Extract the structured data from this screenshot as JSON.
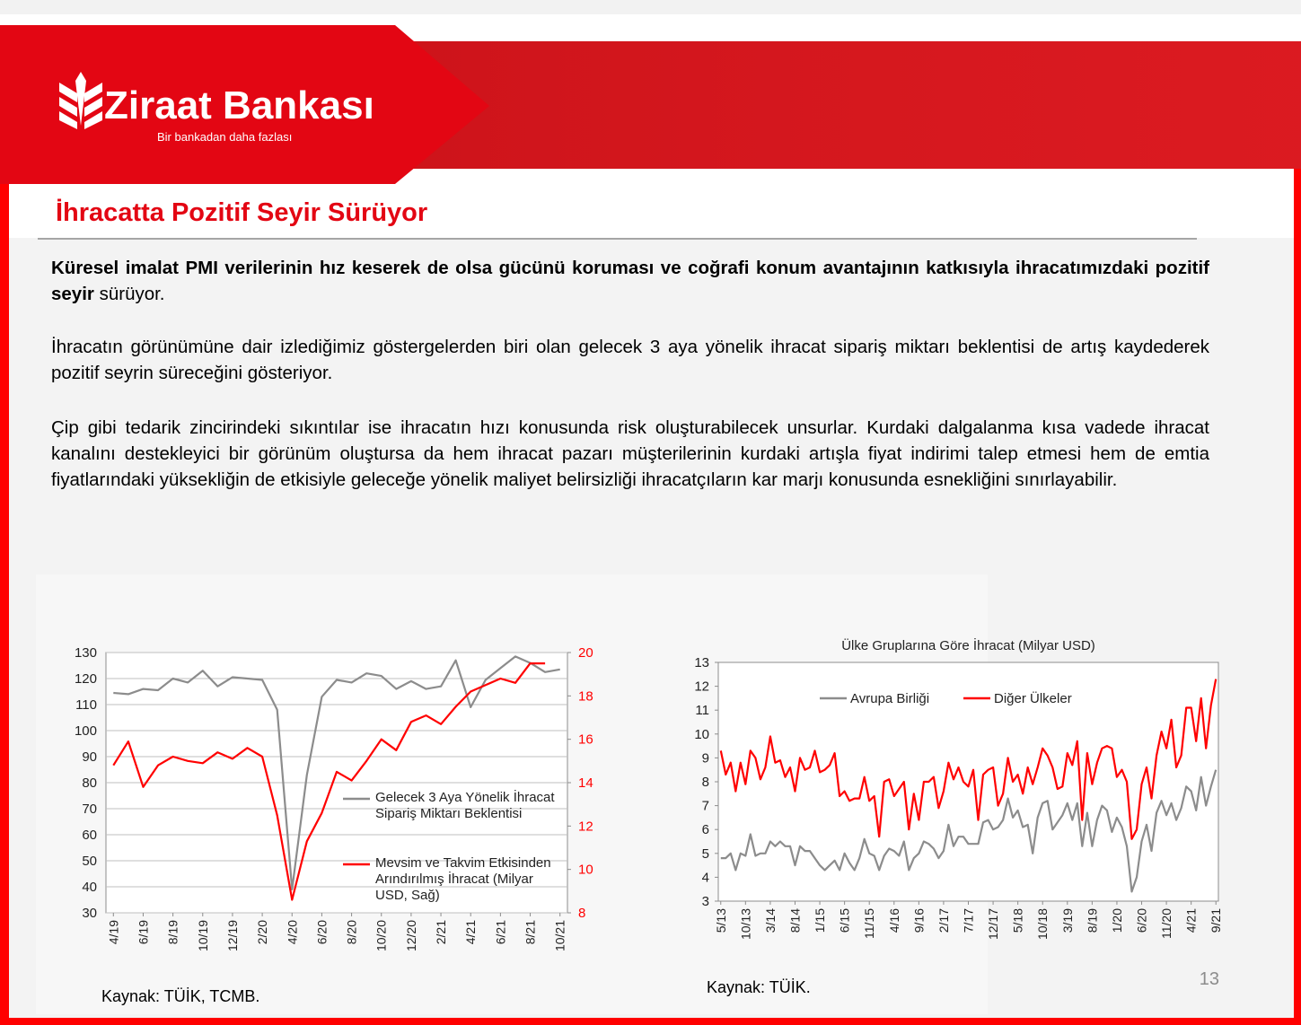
{
  "header": {
    "logo": "Ziraat Bankası",
    "tagline": "Bir bankadan daha fazlası",
    "title": "İhracatta Pozitif Seyir Sürüyor"
  },
  "paragraphs": [
    {
      "bold": "Küresel imalat PMI verilerinin hız keserek de olsa gücünü koruması ve coğrafi konum avantajının katkısıyla ihracatımızdaki pozitif seyir",
      "text": " sürüyor."
    },
    {
      "text": "İhracatın görünümüne dair izlediğimiz göstergelerden biri olan gelecek 3 aya yönelik ihracat sipariş miktarı beklentisi de artış kaydederek pozitif seyrin süreceğini gösteriyor."
    },
    {
      "text": "Çip gibi tedarik zincirindeki sıkıntılar ise ihracatın hızı konusunda risk oluşturabilecek unsurlar. Kurdaki dalgalanma kısa vadede ihracat kanalını destekleyici bir görünüm oluştursa da hem ihracat pazarı müşterilerinin kurdaki artışla fiyat indirimi talep etmesi hem de emtia fiyatlarındaki yüksekliğin de etkisiyle geleceğe yönelik maliyet belirsizliği ihracatçıların kar marjı konusunda esnekliğini sınırlayabilir."
    }
  ],
  "chart_data": [
    {
      "type": "line",
      "source": "Kaynak: TÜİK, TCMB.",
      "categories": [
        "4/19",
        null,
        "6/19",
        null,
        "8/19",
        null,
        "10/19",
        null,
        "12/19",
        null,
        "2/20",
        null,
        "4/20",
        null,
        "6/20",
        null,
        "8/20",
        null,
        "10/20",
        null,
        "12/20",
        null,
        "2/21",
        null,
        "4/21",
        null,
        "6/21",
        null,
        "8/21",
        null,
        "10/21"
      ],
      "series": [
        {
          "name": "Gelecek 3 Aya Yönelik İhracat Sipariş Miktarı Beklentisi",
          "color": "#8c8c8c",
          "axis": "y",
          "values": [
            114.5,
            114,
            116,
            115.5,
            120,
            118.5,
            123,
            117,
            120.5,
            120,
            119.5,
            108,
            39,
            83,
            113,
            119.5,
            118.5,
            122,
            121,
            116,
            119,
            116,
            117,
            127,
            109,
            119.5,
            124,
            128.5,
            126,
            122.5,
            123.5
          ]
        },
        {
          "name": "Mevsim ve Takvim Etkisinden Arındırılmış İhracat (Milyar USD, Sağ)",
          "color": "#ff0000",
          "axis": "y2",
          "values": [
            14.8,
            15.9,
            13.8,
            14.8,
            15.2,
            15.0,
            14.9,
            15.4,
            15.1,
            15.6,
            15.2,
            12.5,
            8.6,
            11.3,
            12.6,
            14.5,
            14.1,
            15.0,
            16.0,
            15.5,
            16.8,
            17.1,
            16.7,
            17.5,
            18.2,
            18.5,
            18.8,
            18.6,
            19.5,
            19.5,
            null
          ]
        }
      ],
      "ylim": [
        30,
        130
      ],
      "yticks": [
        30,
        40,
        50,
        60,
        70,
        80,
        90,
        100,
        110,
        120,
        130
      ],
      "y2lim": [
        8,
        20
      ],
      "y2ticks": [
        8,
        10,
        12,
        14,
        16,
        18,
        20
      ],
      "y2tick_color": "#ff0000",
      "grid": true
    },
    {
      "type": "line",
      "title": "Ülke Gruplarına Göre İhracat (Milyar USD)",
      "source": "Kaynak: TÜİK.",
      "categories": [
        "5/13",
        null,
        null,
        null,
        null,
        "10/13",
        null,
        null,
        null,
        null,
        "3/14",
        null,
        null,
        null,
        null,
        "8/14",
        null,
        null,
        null,
        null,
        "1/15",
        null,
        null,
        null,
        null,
        "6/15",
        null,
        null,
        null,
        null,
        "11/15",
        null,
        null,
        null,
        null,
        "4/16",
        null,
        null,
        null,
        null,
        "9/16",
        null,
        null,
        null,
        null,
        "2/17",
        null,
        null,
        null,
        null,
        "7/17",
        null,
        null,
        null,
        null,
        "12/17",
        null,
        null,
        null,
        null,
        "5/18",
        null,
        null,
        null,
        null,
        "10/18",
        null,
        null,
        null,
        null,
        "3/19",
        null,
        null,
        null,
        null,
        "8/19",
        null,
        null,
        null,
        null,
        "1/20",
        null,
        null,
        null,
        null,
        "6/20",
        null,
        null,
        null,
        null,
        "11/20",
        null,
        null,
        null,
        null,
        "4/21",
        null,
        null,
        null,
        null,
        "9/21"
      ],
      "series": [
        {
          "name": "Avrupa Birliği",
          "color": "#8c8c8c",
          "axis": "y",
          "values": [
            4.8,
            4.8,
            5.0,
            4.3,
            5.0,
            4.9,
            5.8,
            4.9,
            5.0,
            5.0,
            5.5,
            5.3,
            5.5,
            5.3,
            5.3,
            4.5,
            5.3,
            5.1,
            5.1,
            4.8,
            4.5,
            4.3,
            4.5,
            4.7,
            4.3,
            5.0,
            4.6,
            4.3,
            4.8,
            5.6,
            5.0,
            4.9,
            4.3,
            4.9,
            5.2,
            5.1,
            4.9,
            5.5,
            4.3,
            4.8,
            5.0,
            5.5,
            5.4,
            5.2,
            4.8,
            5.1,
            6.2,
            5.3,
            5.7,
            5.7,
            5.4,
            5.4,
            5.4,
            6.3,
            6.4,
            6.0,
            6.1,
            6.4,
            7.3,
            6.5,
            6.8,
            6.1,
            6.2,
            5.0,
            6.5,
            7.1,
            7.2,
            6.0,
            6.3,
            6.6,
            7.1,
            6.4,
            7.1,
            5.3,
            6.7,
            5.3,
            6.4,
            7.0,
            6.8,
            5.9,
            6.5,
            6.1,
            5.3,
            3.4,
            4.0,
            5.5,
            6.2,
            5.1,
            6.7,
            7.2,
            6.6,
            7.1,
            6.4,
            6.9,
            7.8,
            7.6,
            6.8,
            8.2,
            7.0,
            7.8,
            8.5
          ]
        },
        {
          "name": "Diğer Ülkeler",
          "color": "#ff0000",
          "axis": "y",
          "values": [
            9.3,
            8.3,
            8.8,
            7.6,
            8.8,
            7.9,
            9.3,
            9.0,
            8.1,
            8.6,
            9.9,
            8.8,
            8.9,
            8.2,
            8.6,
            7.6,
            9.0,
            8.5,
            8.6,
            9.3,
            8.4,
            8.5,
            8.7,
            9.2,
            7.4,
            7.6,
            7.2,
            7.3,
            7.3,
            8.2,
            7.2,
            7.4,
            5.7,
            8.0,
            8.1,
            7.4,
            7.7,
            8.0,
            6.0,
            7.5,
            6.4,
            8.0,
            8.0,
            8.2,
            6.9,
            7.6,
            8.8,
            8.1,
            8.6,
            8.0,
            7.8,
            8.5,
            6.4,
            8.3,
            8.5,
            8.6,
            7.0,
            7.5,
            9.0,
            8.0,
            8.3,
            7.5,
            8.6,
            7.9,
            8.6,
            9.4,
            9.1,
            8.6,
            7.7,
            7.8,
            9.2,
            8.7,
            9.7,
            6.4,
            9.2,
            7.9,
            8.8,
            9.4,
            9.5,
            9.4,
            8.2,
            8.5,
            8.0,
            5.6,
            6.0,
            7.9,
            8.6,
            7.3,
            9.1,
            10.1,
            9.4,
            10.6,
            8.6,
            9.1,
            11.1,
            11.1,
            9.7,
            11.5,
            9.4,
            11.2,
            12.3
          ]
        }
      ],
      "ylim": [
        3,
        13
      ],
      "yticks": [
        3,
        4,
        5,
        6,
        7,
        8,
        9,
        10,
        11,
        12,
        13
      ],
      "grid": false
    }
  ],
  "page_number": 13
}
